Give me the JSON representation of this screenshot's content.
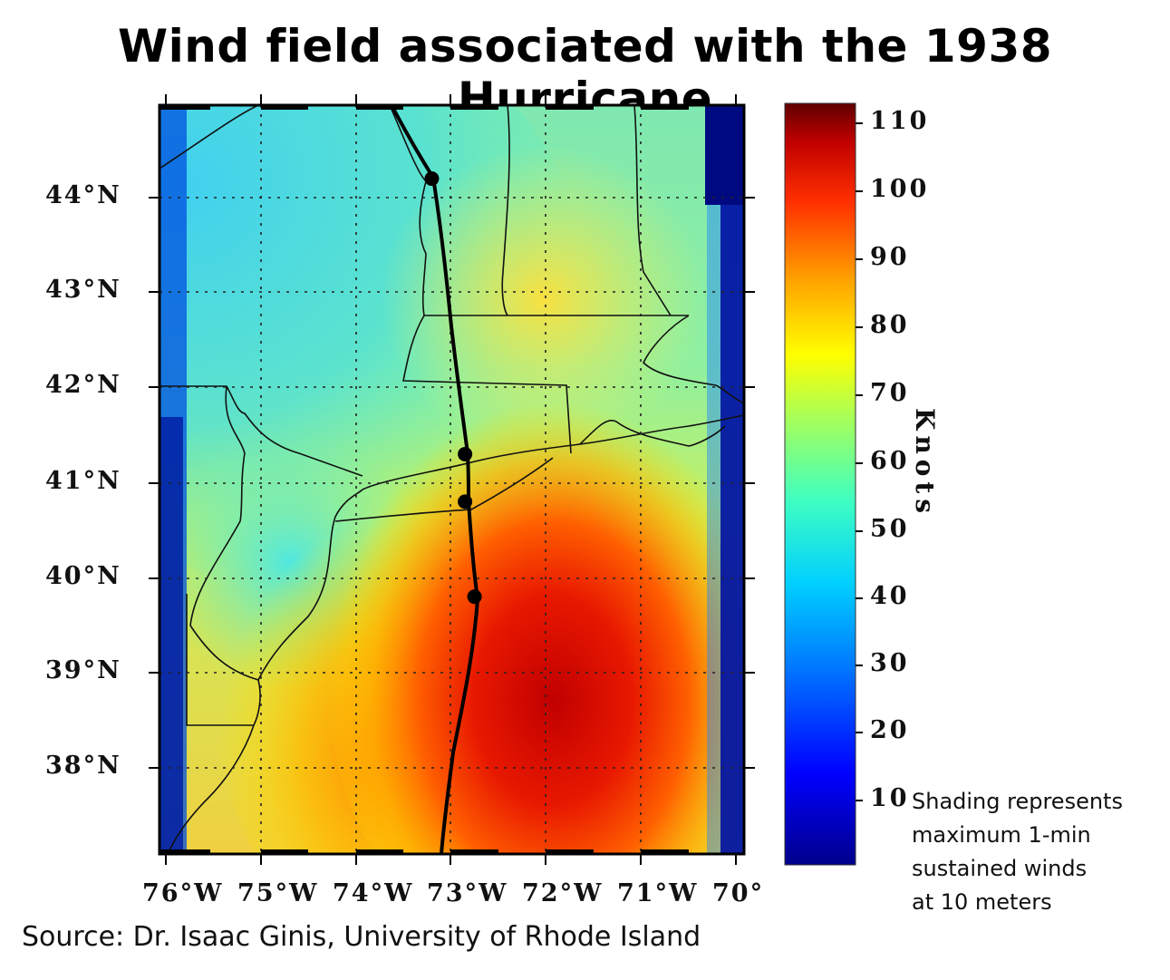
{
  "title": "Wind field associated with the 1938 Hurricane",
  "latitude_labels": [
    "44°N",
    "43°N",
    "42°N",
    "41°N",
    "40°N",
    "39°N",
    "38°N"
  ],
  "longitude_labels": [
    "76°W",
    "75°W",
    "74°W",
    "73°W",
    "72°W",
    "71°W",
    "70°"
  ],
  "colorbar": {
    "label": "Knots",
    "ticks": [
      "110",
      "100",
      "90",
      "80",
      "70",
      "60",
      "50",
      "40",
      "30",
      "20",
      "10"
    ],
    "colors": [
      "#00008b",
      "#0000ff",
      "#0080ff",
      "#00e0ff",
      "#40ffb0",
      "#b0ff50",
      "#ffff00",
      "#ffa000",
      "#ff4000",
      "#d00000",
      "#600000"
    ]
  },
  "note": {
    "line1": "Shading represents",
    "line2": "maximum 1-min",
    "line3": "sustained winds",
    "line4": "at 10 meters"
  },
  "source": "Source: Dr. Isaac Ginis, University of Rhode Island",
  "track_points": [
    {
      "lon": -73.2,
      "lat": 44.2
    },
    {
      "lon": -72.85,
      "lat": 41.3
    },
    {
      "lon": -72.85,
      "lat": 40.8
    },
    {
      "lon": -72.75,
      "lat": 39.8
    }
  ]
}
